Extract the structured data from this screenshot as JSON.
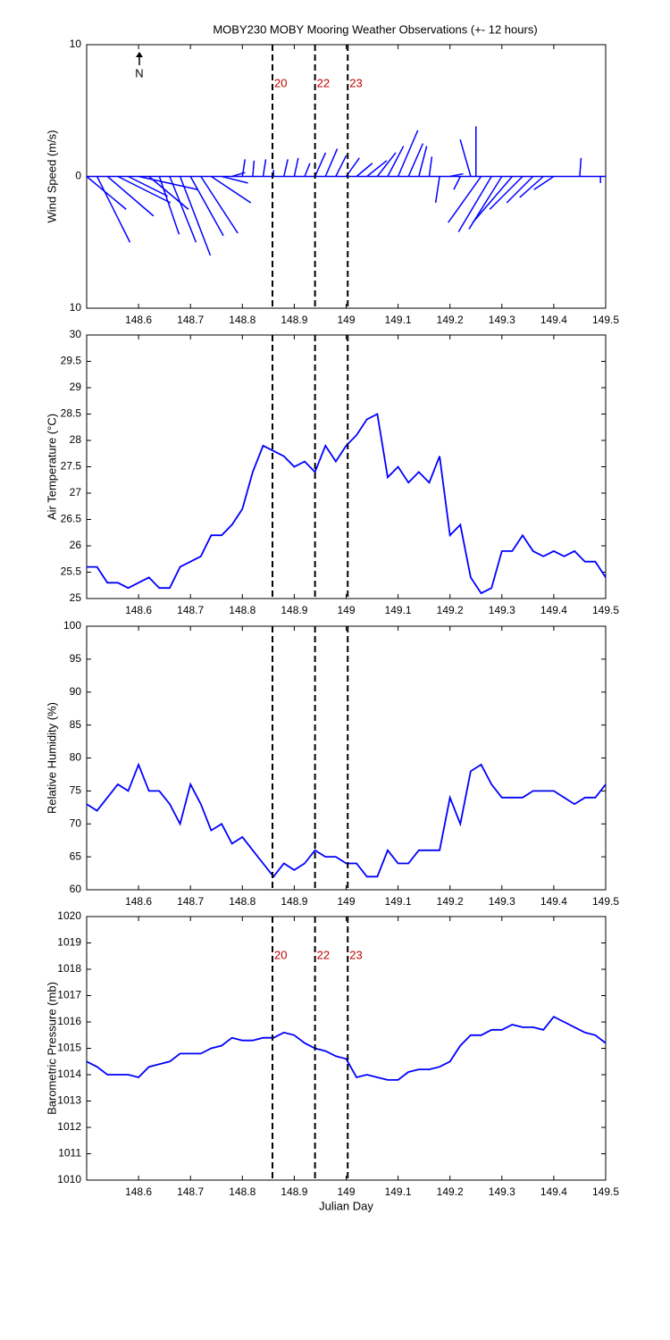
{
  "chart_data": [
    {
      "type": "quiver",
      "title": "MOBY230 MOBY Mooring Weather Observations (+- 12 hours)",
      "y_label": "Wind Speed (m/s)",
      "north_label": "N",
      "color": "#0000ff",
      "xlim": [
        148.5,
        149.5
      ],
      "xticks": [
        148.6,
        148.7,
        148.8,
        148.9,
        149,
        149.1,
        149.2,
        149.3,
        149.4,
        149.5
      ],
      "ylim": [
        -10,
        10
      ],
      "yticks": [
        {
          "value": -10,
          "label": "10"
        },
        0,
        10
      ],
      "x": [
        148.5,
        148.52,
        148.54,
        148.56,
        148.58,
        148.6,
        148.62,
        148.64,
        148.66,
        148.68,
        148.7,
        148.72,
        148.74,
        148.76,
        148.78,
        148.8,
        148.82,
        148.84,
        148.86,
        148.88,
        148.9,
        148.92,
        148.94,
        148.96,
        148.98,
        149.0,
        149.02,
        149.04,
        149.06,
        149.08,
        149.1,
        149.12,
        149.14,
        149.16,
        149.18,
        149.2,
        149.22,
        149.24,
        149.25,
        149.26,
        149.28,
        149.3,
        149.32,
        149.34,
        149.36,
        149.38,
        149.4,
        149.45,
        149.49
      ],
      "u": [
        3.0,
        2.5,
        3.5,
        4.0,
        3.0,
        4.5,
        3.0,
        1.5,
        2.0,
        2.3,
        2.5,
        2.8,
        3.0,
        2.0,
        1.0,
        0.2,
        0.1,
        0.2,
        0.0,
        0.3,
        0.3,
        0.4,
        0.8,
        0.9,
        0.8,
        1.0,
        1.2,
        1.5,
        1.4,
        1.2,
        1.5,
        1.1,
        0.6,
        0.2,
        -0.3,
        1.0,
        -0.5,
        -0.8,
        0.0,
        -2.5,
        -2.5,
        -2.5,
        -3.0,
        -2.5,
        -2.0,
        -1.8,
        -1.5,
        0.1,
        0.0
      ],
      "v": [
        -2.5,
        -5.0,
        -3.0,
        -2.0,
        -1.5,
        -1.0,
        -2.5,
        -4.4,
        -5.0,
        -6.0,
        -4.5,
        -4.3,
        -2.0,
        -0.5,
        0.3,
        1.3,
        1.2,
        1.3,
        0.5,
        1.3,
        1.4,
        1.0,
        1.8,
        2.1,
        1.6,
        1.4,
        1.0,
        1.2,
        1.8,
        2.3,
        3.5,
        2.5,
        2.3,
        1.5,
        -2.0,
        0.2,
        -1.0,
        2.8,
        3.8,
        -3.5,
        -4.2,
        -4.0,
        -3.5,
        -2.5,
        -2.0,
        -1.6,
        -1.0,
        1.4,
        -0.5
      ],
      "vlines": [
        {
          "x": 148.858,
          "label": "20"
        },
        {
          "x": 148.94,
          "label": "22"
        },
        {
          "x": 149.003,
          "label": "23"
        }
      ]
    },
    {
      "type": "line",
      "y_label": "Air Temperature (°C)",
      "color": "#0000ff",
      "xlim": [
        148.5,
        149.5
      ],
      "xticks": [
        148.6,
        148.7,
        148.8,
        148.9,
        149,
        149.1,
        149.2,
        149.3,
        149.4,
        149.5
      ],
      "ylim": [
        25,
        30
      ],
      "yticks": [
        25,
        25.5,
        26,
        26.5,
        27,
        27.5,
        28,
        28.5,
        29,
        29.5,
        30
      ],
      "x": [
        148.5,
        148.52,
        148.54,
        148.56,
        148.58,
        148.6,
        148.62,
        148.64,
        148.66,
        148.68,
        148.7,
        148.72,
        148.74,
        148.76,
        148.78,
        148.8,
        148.82,
        148.84,
        148.86,
        148.88,
        148.9,
        148.92,
        148.94,
        148.96,
        148.98,
        149.0,
        149.02,
        149.04,
        149.06,
        149.08,
        149.1,
        149.12,
        149.14,
        149.16,
        149.18,
        149.2,
        149.22,
        149.24,
        149.26,
        149.28,
        149.3,
        149.32,
        149.34,
        149.36,
        149.38,
        149.4,
        149.42,
        149.44,
        149.46,
        149.48,
        149.5
      ],
      "values": [
        25.6,
        25.6,
        25.3,
        25.3,
        25.2,
        25.3,
        25.4,
        25.2,
        25.2,
        25.6,
        25.7,
        25.8,
        26.2,
        26.2,
        26.4,
        26.7,
        27.4,
        27.9,
        27.8,
        27.7,
        27.5,
        27.6,
        27.4,
        27.9,
        27.6,
        27.9,
        28.1,
        28.4,
        28.5,
        27.3,
        27.5,
        27.2,
        27.4,
        27.2,
        27.7,
        26.2,
        26.4,
        25.4,
        25.1,
        25.2,
        25.9,
        25.9,
        26.2,
        25.9,
        25.8,
        25.9,
        25.8,
        25.9,
        25.7,
        25.7,
        25.4
      ],
      "vlines": [
        {
          "x": 148.858
        },
        {
          "x": 148.94
        },
        {
          "x": 149.003
        }
      ]
    },
    {
      "type": "line",
      "y_label": "Relative Humidity (%)",
      "color": "#0000ff",
      "xlim": [
        148.5,
        149.5
      ],
      "xticks": [
        148.6,
        148.7,
        148.8,
        148.9,
        149,
        149.1,
        149.2,
        149.3,
        149.4,
        149.5
      ],
      "ylim": [
        60,
        100
      ],
      "yticks": [
        60,
        65,
        70,
        75,
        80,
        85,
        90,
        95,
        100
      ],
      "x": [
        148.5,
        148.52,
        148.54,
        148.56,
        148.58,
        148.6,
        148.62,
        148.64,
        148.66,
        148.68,
        148.7,
        148.72,
        148.74,
        148.76,
        148.78,
        148.8,
        148.82,
        148.84,
        148.86,
        148.88,
        148.9,
        148.92,
        148.94,
        148.96,
        148.98,
        149.0,
        149.02,
        149.04,
        149.06,
        149.08,
        149.1,
        149.12,
        149.14,
        149.16,
        149.18,
        149.2,
        149.22,
        149.24,
        149.26,
        149.28,
        149.3,
        149.32,
        149.34,
        149.36,
        149.38,
        149.4,
        149.42,
        149.44,
        149.46,
        149.48,
        149.5
      ],
      "values": [
        73,
        72,
        74,
        76,
        75,
        79,
        75,
        75,
        73,
        70,
        76,
        73,
        69,
        70,
        67,
        68,
        66,
        64,
        62,
        64,
        63,
        64,
        66,
        65,
        65,
        64,
        64,
        62,
        62,
        66,
        64,
        64,
        66,
        66,
        66,
        74,
        70,
        78,
        79,
        76,
        74,
        74,
        74,
        75,
        75,
        75,
        74,
        73,
        74,
        74,
        76
      ],
      "vlines": [
        {
          "x": 148.858
        },
        {
          "x": 148.94
        },
        {
          "x": 149.003
        }
      ]
    },
    {
      "type": "line",
      "y_label": "Barometric Pressure (mb)",
      "x_label": "Julian Day",
      "color": "#0000ff",
      "xlim": [
        148.5,
        149.5
      ],
      "xticks": [
        148.6,
        148.7,
        148.8,
        148.9,
        149,
        149.1,
        149.2,
        149.3,
        149.4,
        149.5
      ],
      "ylim": [
        1010,
        1020
      ],
      "yticks": [
        1010,
        1011,
        1012,
        1013,
        1014,
        1015,
        1016,
        1017,
        1018,
        1019,
        1020
      ],
      "x": [
        148.5,
        148.52,
        148.54,
        148.56,
        148.58,
        148.6,
        148.62,
        148.64,
        148.66,
        148.68,
        148.7,
        148.72,
        148.74,
        148.76,
        148.78,
        148.8,
        148.82,
        148.84,
        148.86,
        148.88,
        148.9,
        148.92,
        148.94,
        148.96,
        148.98,
        149.0,
        149.02,
        149.04,
        149.06,
        149.08,
        149.1,
        149.12,
        149.14,
        149.16,
        149.18,
        149.2,
        149.22,
        149.24,
        149.26,
        149.28,
        149.3,
        149.32,
        149.34,
        149.36,
        149.38,
        149.4,
        149.42,
        149.44,
        149.46,
        149.48,
        149.5
      ],
      "values": [
        1014.5,
        1014.3,
        1014.0,
        1014.0,
        1014.0,
        1013.9,
        1014.3,
        1014.4,
        1014.5,
        1014.8,
        1014.8,
        1014.8,
        1015.0,
        1015.1,
        1015.4,
        1015.3,
        1015.3,
        1015.4,
        1015.4,
        1015.6,
        1015.5,
        1015.2,
        1015.0,
        1014.9,
        1014.7,
        1014.6,
        1013.9,
        1014.0,
        1013.9,
        1013.8,
        1013.8,
        1014.1,
        1014.2,
        1014.2,
        1014.3,
        1014.5,
        1015.1,
        1015.5,
        1015.5,
        1015.7,
        1015.7,
        1015.9,
        1015.8,
        1015.8,
        1015.7,
        1016.2,
        1016.0,
        1015.8,
        1015.6,
        1015.5,
        1015.2
      ],
      "vlines": [
        {
          "x": 148.858,
          "label": "20"
        },
        {
          "x": 148.94,
          "label": "22"
        },
        {
          "x": 149.003,
          "label": "23"
        }
      ]
    }
  ]
}
